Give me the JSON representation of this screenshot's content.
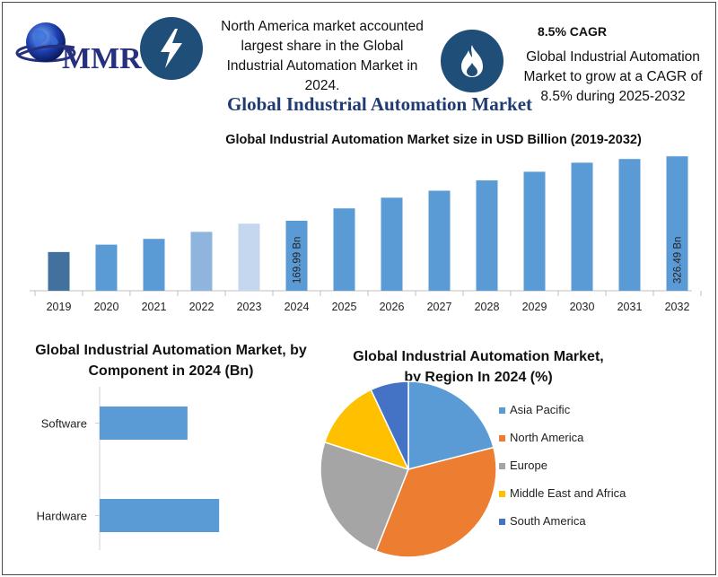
{
  "logo": {
    "text": "MMR"
  },
  "callouts": {
    "left_text": "North America market accounted largest share in the Global Industrial Automation Market in 2024.",
    "right_heading": "8.5% CAGR",
    "right_text": "Global Industrial Automation Market to grow at a CAGR of 8.5% during 2025-2032"
  },
  "icons": {
    "left": "lightning-bolt-icon",
    "right": "flame-icon"
  },
  "main_title": "Global Industrial Automation Market",
  "colors": {
    "bar_primary": "#5b9bd5",
    "bar_2019": "#41719c",
    "bar_2022": "#8fb4de",
    "bar_2023": "#c5d7ef",
    "dark_blue": "#1f4e79",
    "pie_asia_pacific": "#5b9bd5",
    "pie_north_america": "#ed7d31",
    "pie_europe": "#a5a5a5",
    "pie_mea": "#ffc000",
    "pie_south_america": "#4472c4"
  },
  "chart_data": [
    {
      "type": "bar",
      "title": "Global Industrial Automation Market size in USD Billion (2019-2032)",
      "categories": [
        "2019",
        "2020",
        "2021",
        "2022",
        "2023",
        "2024",
        "2025",
        "2026",
        "2027",
        "2028",
        "2029",
        "2030",
        "2031",
        "2032"
      ],
      "values": [
        94,
        112,
        126,
        143,
        163,
        169.99,
        200,
        226,
        243,
        268,
        289,
        311,
        320,
        326.49
      ],
      "data_labels": {
        "2024": "169.99 Bn",
        "2032": "326.49 Bn"
      },
      "ylim": [
        0,
        340
      ],
      "grid": false
    },
    {
      "type": "bar",
      "orientation": "horizontal",
      "title": "Global Industrial Automation Market, by Component in 2024 (Bn)",
      "categories": [
        "Software",
        "Hardware"
      ],
      "values": [
        75,
        102
      ],
      "xlim": [
        0,
        180
      ]
    },
    {
      "type": "pie",
      "title": "Global Industrial Automation Market, by Region In 2024 (%)",
      "categories": [
        "Asia Pacific",
        "North America",
        "Europe",
        "Middle East and Africa",
        "South America"
      ],
      "values": [
        21,
        35,
        24,
        13,
        7
      ],
      "legend": "right"
    }
  ]
}
